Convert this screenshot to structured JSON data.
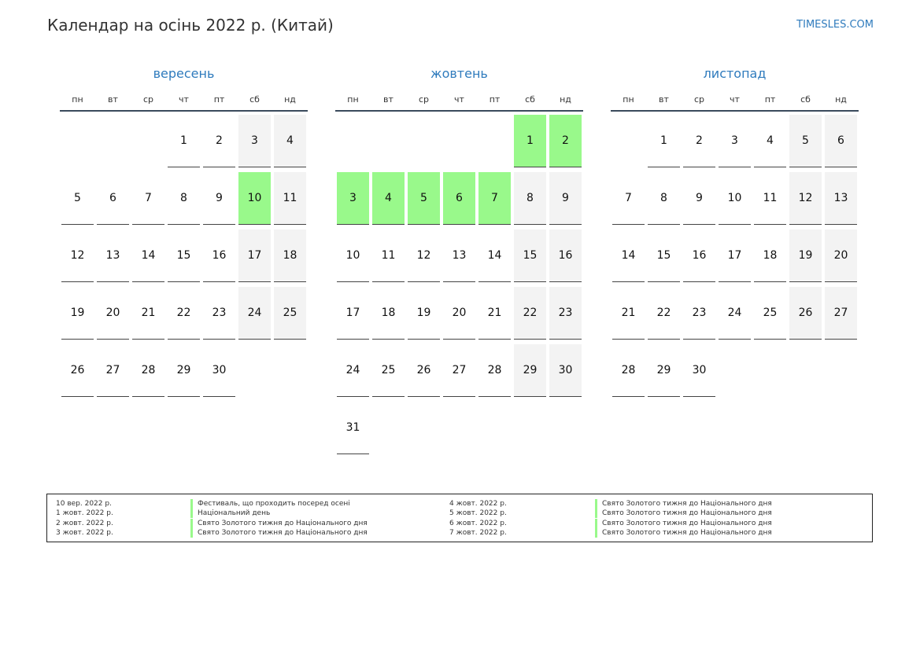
{
  "header": {
    "title": "Календар на осінь 2022 р. (Китай)",
    "site": "TIMESLES.COM"
  },
  "colors": {
    "accent": "#2f7bbd",
    "holiday": "#99f98b",
    "weekend": "#f3f3f3"
  },
  "weekdays": [
    "пн",
    "вт",
    "ср",
    "чт",
    "пт",
    "сб",
    "нд"
  ],
  "months": [
    {
      "name": "вересень",
      "offset": 3,
      "days": 30,
      "holidays": [
        10
      ]
    },
    {
      "name": "жовтень",
      "offset": 5,
      "days": 31,
      "holidays": [
        1,
        2,
        3,
        4,
        5,
        6,
        7
      ]
    },
    {
      "name": "листопад",
      "offset": 1,
      "days": 30,
      "holidays": []
    }
  ],
  "legend": [
    {
      "date": "10 вер. 2022 р.",
      "name": "Фестиваль, що проходить посеред осені"
    },
    {
      "date": "1 жовт. 2022 р.",
      "name": "Національний день"
    },
    {
      "date": "2 жовт. 2022 р.",
      "name": "Свято Золотого тижня до Національного дня"
    },
    {
      "date": "3 жовт. 2022 р.",
      "name": "Свято Золотого тижня до Національного дня"
    },
    {
      "date": "4 жовт. 2022 р.",
      "name": "Свято Золотого тижня до Національного дня"
    },
    {
      "date": "5 жовт. 2022 р.",
      "name": "Свято Золотого тижня до Національного дня"
    },
    {
      "date": "6 жовт. 2022 р.",
      "name": "Свято Золотого тижня до Національного дня"
    },
    {
      "date": "7 жовт. 2022 р.",
      "name": "Свято Золотого тижня до Національного дня"
    }
  ]
}
